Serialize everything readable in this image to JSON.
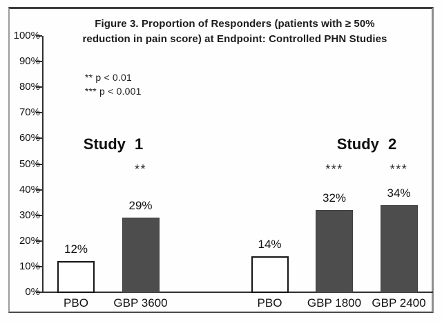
{
  "chart_data": {
    "type": "bar",
    "title": "Figure 3. Proportion of Responders (patients with ≥ 50% reduction in pain score) at Endpoint: Controlled PHN Studies",
    "title_lines": [
      "Figure 3. Proportion of Responders (patients with ≥ 50%",
      "reduction in pain score) at Endpoint: Controlled PHN Studies"
    ],
    "xlabel": "",
    "ylabel": "",
    "ylim": [
      0,
      100
    ],
    "ytick_step": 10,
    "yticks": [
      "0%",
      "10%",
      "20%",
      "30%",
      "40%",
      "50%",
      "60%",
      "70%",
      "80%",
      "90%",
      "100%"
    ],
    "grid": false,
    "legend": "none",
    "significance_notes": [
      "** p < 0.01",
      "*** p < 0.001"
    ],
    "groups": [
      {
        "name": "Study 1",
        "bars": [
          {
            "label": "PBO",
            "value": 12,
            "value_label": "12%",
            "fill": "#ffffff",
            "significance": ""
          },
          {
            "label": "GBP 3600",
            "value": 29,
            "value_label": "29%",
            "fill": "#4d4d4d",
            "significance": "**"
          }
        ]
      },
      {
        "name": "Study 2",
        "bars": [
          {
            "label": "PBO",
            "value": 14,
            "value_label": "14%",
            "fill": "#ffffff",
            "significance": ""
          },
          {
            "label": "GBP 1800",
            "value": 32,
            "value_label": "32%",
            "fill": "#4d4d4d",
            "significance": "***"
          },
          {
            "label": "GBP 2400",
            "value": 34,
            "value_label": "34%",
            "fill": "#4d4d4d",
            "significance": "***"
          }
        ]
      }
    ],
    "colors": {
      "bar_dark": "#4d4d4d",
      "bar_light": "#ffffff",
      "bar_light_border": "#141414",
      "axis": "#2f2f2f",
      "frame_border": "#8f8f8f",
      "text": "#111111"
    }
  }
}
